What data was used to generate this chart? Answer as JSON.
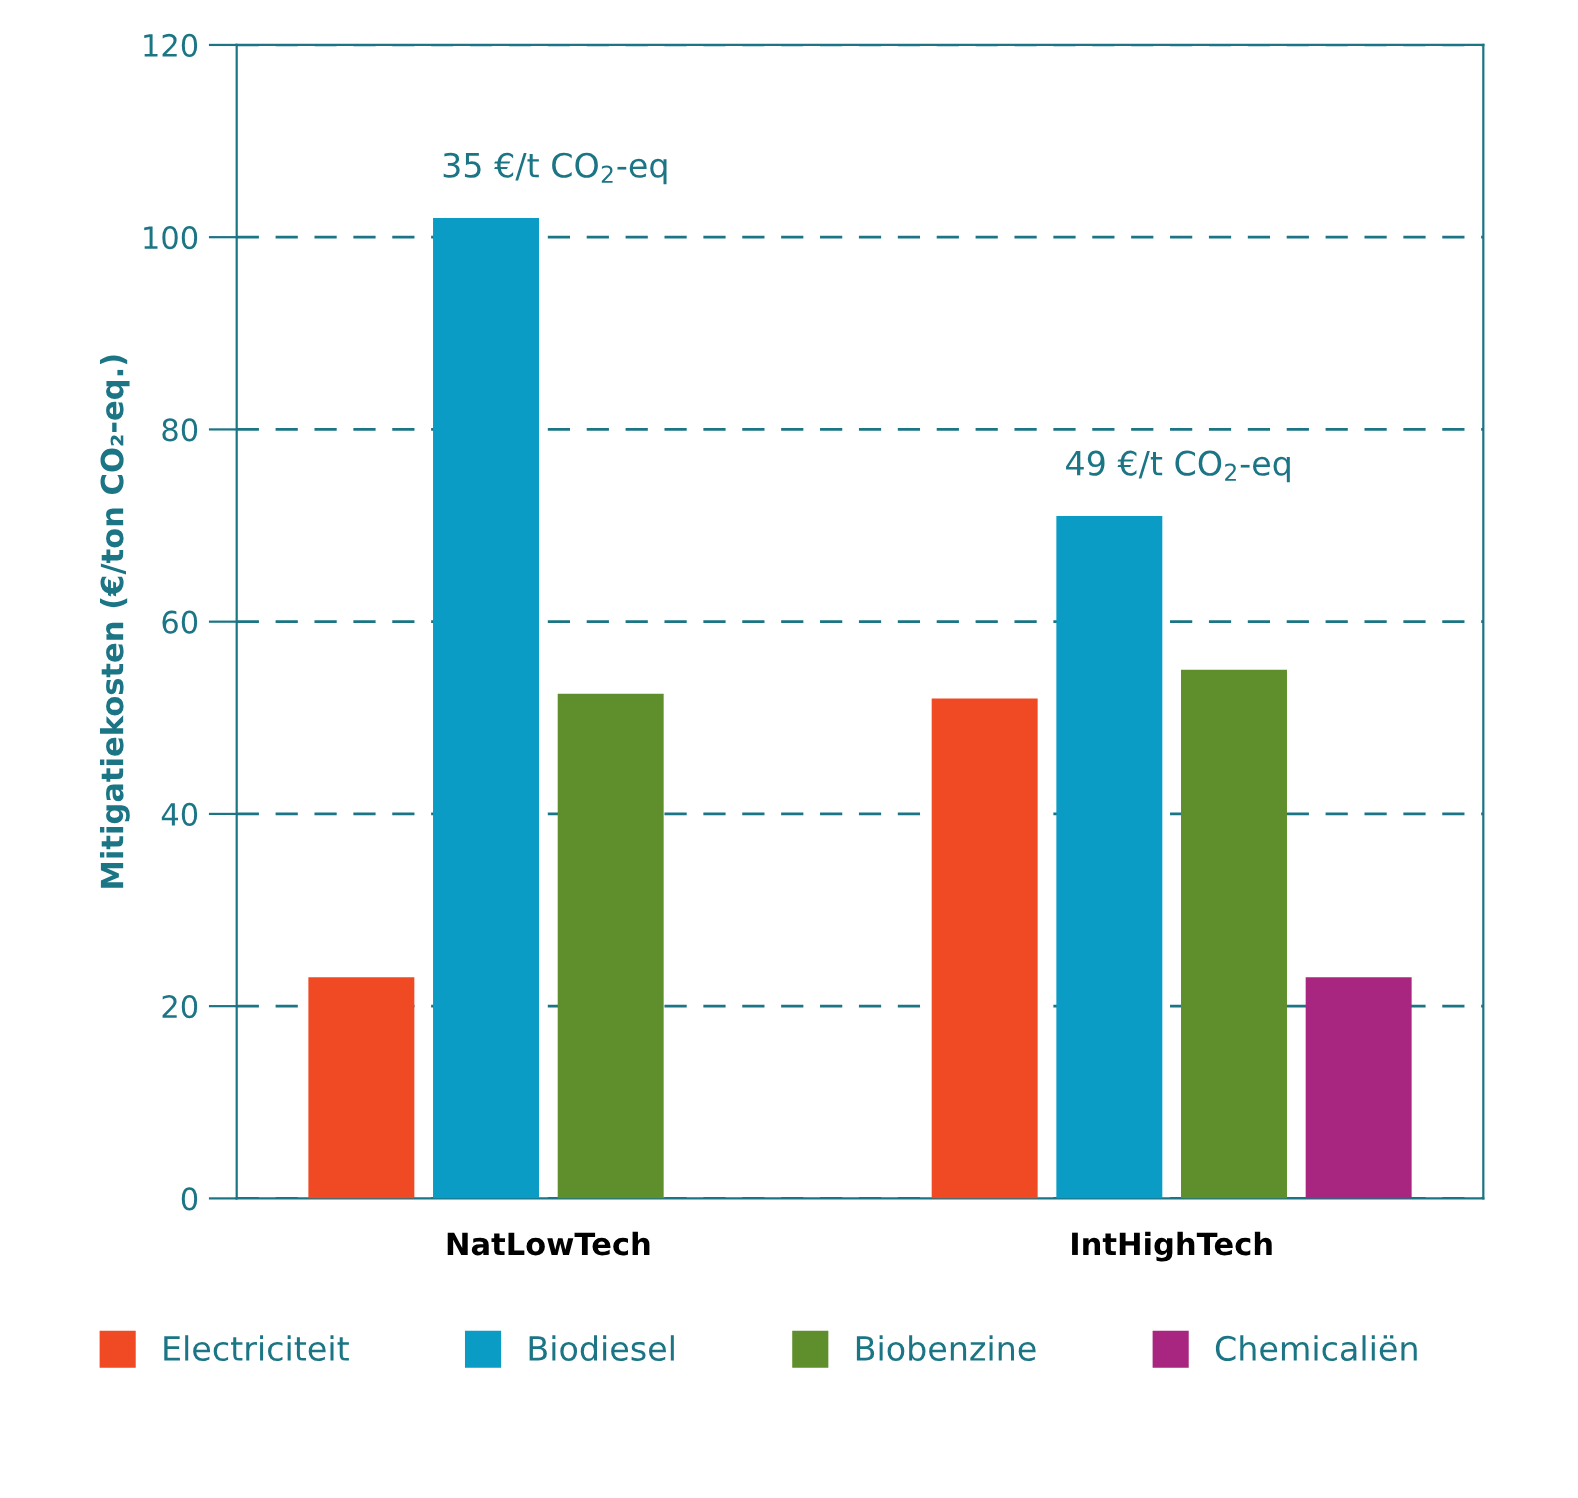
{
  "chart_data": {
    "type": "bar",
    "ylabel": "Mitigatiekosten (€/ton CO₂-eq.)",
    "categories": [
      "NatLowTech",
      "IntHighTech"
    ],
    "series": [
      {
        "name": "Electriciteit",
        "color": "#f04a24",
        "values": [
          23,
          52
        ]
      },
      {
        "name": "Biodiesel",
        "color": "#0a9cc4",
        "values": [
          102,
          71
        ]
      },
      {
        "name": "Biobenzine",
        "color": "#5f8f2c",
        "values": [
          52.5,
          55
        ]
      },
      {
        "name": "Chemicaliën",
        "color": "#a8267f",
        "values": [
          null,
          23
        ]
      }
    ],
    "ylim": [
      0,
      120
    ],
    "yticks": [
      0,
      20,
      40,
      60,
      80,
      100,
      120
    ],
    "grid": "y",
    "legend": "bottom",
    "annotations": [
      "35 €/t CO$_{2}$-eq",
      "49 €/t CO$_{2}$-eq"
    ]
  }
}
